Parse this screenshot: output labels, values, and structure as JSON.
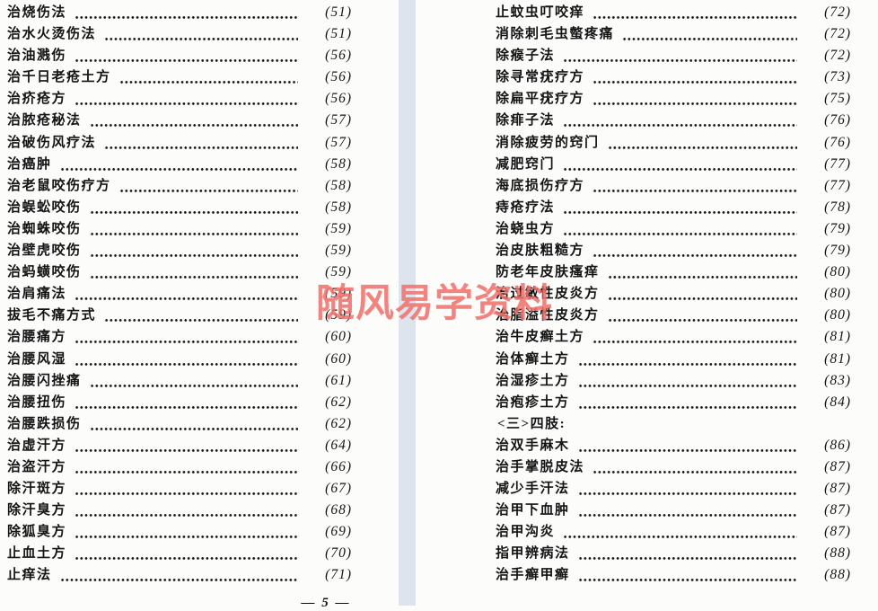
{
  "page": {
    "background": "#fcfcfb",
    "gutter_color": "#dee4ee",
    "text_color": "#141414",
    "footer_page_number": "— 5 —"
  },
  "watermark": {
    "text": "随风易学资料",
    "color": "#f0706a"
  },
  "left_column": {
    "entries": [
      {
        "title": "治烧伤法",
        "page": "(51)"
      },
      {
        "title": "治水火烫伤法",
        "page": "(51)"
      },
      {
        "title": "治油溅伤",
        "page": "(56)"
      },
      {
        "title": "治千日老疮土方",
        "page": "(56)"
      },
      {
        "title": "治疥疮方",
        "page": "(56)"
      },
      {
        "title": "治脓疮秘法",
        "page": "(57)"
      },
      {
        "title": "治破伤风疗法",
        "page": "(57)"
      },
      {
        "title": "治癌肿",
        "page": "(58)"
      },
      {
        "title": "治老鼠咬伤疗方",
        "page": "(58)"
      },
      {
        "title": "治蜈蚣咬伤",
        "page": "(58)"
      },
      {
        "title": "治蜘蛛咬伤",
        "page": "(59)"
      },
      {
        "title": "治壁虎咬伤",
        "page": "(59)"
      },
      {
        "title": "治蚂蟥咬伤",
        "page": "(59)"
      },
      {
        "title": "治肩痛法",
        "page": "(59)"
      },
      {
        "title": "拔毛不痛方式",
        "page": "(59)"
      },
      {
        "title": "治腰痛方",
        "page": "(60)"
      },
      {
        "title": "治腰风湿",
        "page": "(60)"
      },
      {
        "title": "治腰闪挫痛",
        "page": "(61)"
      },
      {
        "title": "治腰扭伤",
        "page": "(62)"
      },
      {
        "title": "治腰跌损伤",
        "page": "(62)"
      },
      {
        "title": "治虚汗方",
        "page": "(64)"
      },
      {
        "title": "治盗汗方",
        "page": "(66)"
      },
      {
        "title": "除汗斑方",
        "page": "(67)"
      },
      {
        "title": "除汗臭方",
        "page": "(68)"
      },
      {
        "title": "除狐臭方",
        "page": "(69)"
      },
      {
        "title": "止血土方",
        "page": "(70)"
      },
      {
        "title": "止痒法",
        "page": "(71)"
      }
    ]
  },
  "right_column": {
    "entries": [
      {
        "title": "止蚊虫叮咬痒",
        "page": "(72)"
      },
      {
        "title": "消除刺毛虫螫疼痛",
        "page": "(72)"
      },
      {
        "title": "除瘊子法",
        "page": "(72)"
      },
      {
        "title": "除寻常疣疗方",
        "page": "(73)"
      },
      {
        "title": "除扁平疣疗方",
        "page": "(75)"
      },
      {
        "title": "除痱子法",
        "page": "(76)"
      },
      {
        "title": "消除疲劳的窍门",
        "page": "(76)"
      },
      {
        "title": "减肥窍门",
        "page": "(77)"
      },
      {
        "title": "海底损伤疗方",
        "page": "(77)"
      },
      {
        "title": "痔疮疗法",
        "page": "(78)"
      },
      {
        "title": "治蛲虫方",
        "page": "(79)"
      },
      {
        "title": "治皮肤粗糙方",
        "page": "(79)"
      },
      {
        "title": "防老年皮肤瘙痒",
        "page": "(80)"
      },
      {
        "title": "治过敏性皮炎方",
        "page": "(80)"
      },
      {
        "title": "治脂溢性皮炎方",
        "page": "(80)"
      },
      {
        "title": "治牛皮癣土方",
        "page": "(81)"
      },
      {
        "title": "治体癣土方",
        "page": "(81)"
      },
      {
        "title": "治湿疹土方",
        "page": "(83)"
      },
      {
        "title": "治疱疹土方",
        "page": "(84)"
      },
      {
        "heading": "<三>四肢:"
      },
      {
        "title": "治双手麻木",
        "page": "(86)"
      },
      {
        "title": "治手掌脱皮法",
        "page": "(87)"
      },
      {
        "title": "减少手汗法",
        "page": "(87)"
      },
      {
        "title": "治甲下血肿",
        "page": "(87)"
      },
      {
        "title": "治甲沟炎",
        "page": "(87)"
      },
      {
        "title": "指甲辨病法",
        "page": "(88)"
      },
      {
        "title": "治手癣甲癣",
        "page": "(88)"
      }
    ]
  }
}
